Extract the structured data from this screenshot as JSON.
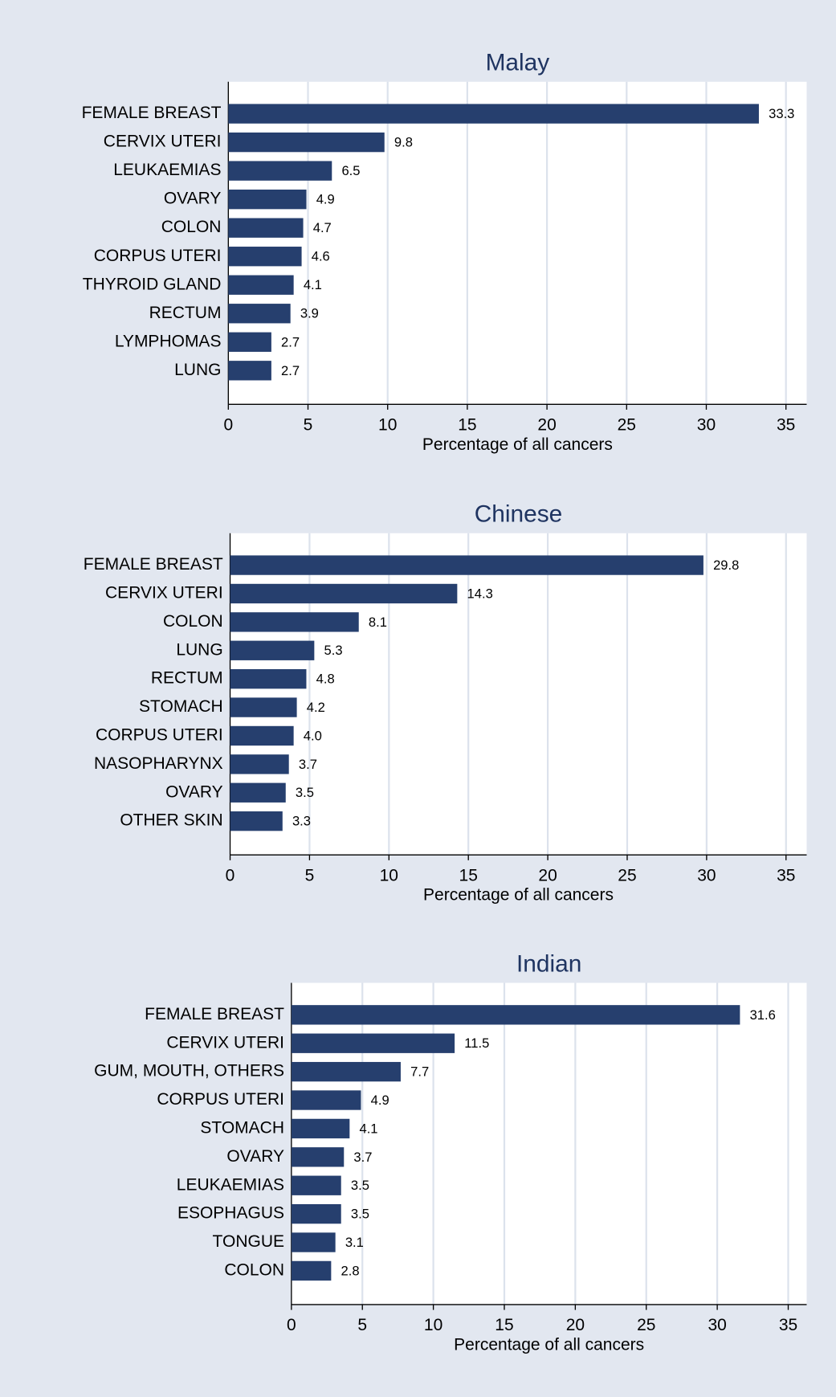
{
  "chart_data": [
    {
      "type": "bar",
      "orientation": "horizontal",
      "title": "Malay",
      "xlabel": "Percentage of all cancers",
      "categories": [
        "FEMALE BREAST",
        "CERVIX UTERI",
        "LEUKAEMIAS",
        "OVARY",
        "COLON",
        "CORPUS UTERI",
        "THYROID GLAND",
        "RECTUM",
        "LYMPHOMAS",
        "LUNG"
      ],
      "values": [
        33.3,
        9.8,
        6.5,
        4.9,
        4.7,
        4.6,
        4.1,
        3.9,
        2.7,
        2.7
      ],
      "value_labels": [
        "33.3",
        "9.8",
        "6.5",
        "4.9",
        "4.7",
        "4.6",
        "4.1",
        "3.9",
        "2.7",
        "2.7"
      ],
      "color": "#263f6e",
      "xlim": [
        0,
        36.3
      ],
      "xticks": [
        0,
        5,
        10,
        15,
        20,
        25,
        30,
        35
      ],
      "grid": true
    },
    {
      "type": "bar",
      "orientation": "horizontal",
      "title": "Chinese",
      "xlabel": "Percentage of all cancers",
      "categories": [
        "FEMALE BREAST",
        "CERVIX UTERI",
        "COLON",
        "LUNG",
        "RECTUM",
        "STOMACH",
        "CORPUS UTERI",
        "NASOPHARYNX",
        "OVARY",
        "OTHER SKIN"
      ],
      "values": [
        29.8,
        14.3,
        8.1,
        5.3,
        4.8,
        4.2,
        4.0,
        3.7,
        3.5,
        3.3
      ],
      "value_labels": [
        "29.8",
        "14.3",
        "8.1",
        "5.3",
        "4.8",
        "4.2",
        "4.0",
        "3.7",
        "3.5",
        "3.3"
      ],
      "color": "#263f6e",
      "xlim": [
        0,
        36.3
      ],
      "xticks": [
        0,
        5,
        10,
        15,
        20,
        25,
        30,
        35
      ],
      "grid": true
    },
    {
      "type": "bar",
      "orientation": "horizontal",
      "title": "Indian",
      "xlabel": "Percentage of all cancers",
      "categories": [
        "FEMALE BREAST",
        "CERVIX UTERI",
        "GUM, MOUTH, OTHERS",
        "CORPUS UTERI",
        "STOMACH",
        "OVARY",
        "LEUKAEMIAS",
        "ESOPHAGUS",
        "TONGUE",
        "COLON"
      ],
      "values": [
        31.6,
        11.5,
        7.7,
        4.9,
        4.1,
        3.7,
        3.5,
        3.5,
        3.1,
        2.8
      ],
      "value_labels": [
        "31.6",
        "11.5",
        "7.7",
        "4.9",
        "4.1",
        "3.7",
        "3.5",
        "3.5",
        "3.1",
        "2.8"
      ],
      "color": "#263f6e",
      "xlim": [
        0,
        36.3
      ],
      "xticks": [
        0,
        5,
        10,
        15,
        20,
        25,
        30,
        35
      ],
      "grid": true
    }
  ]
}
